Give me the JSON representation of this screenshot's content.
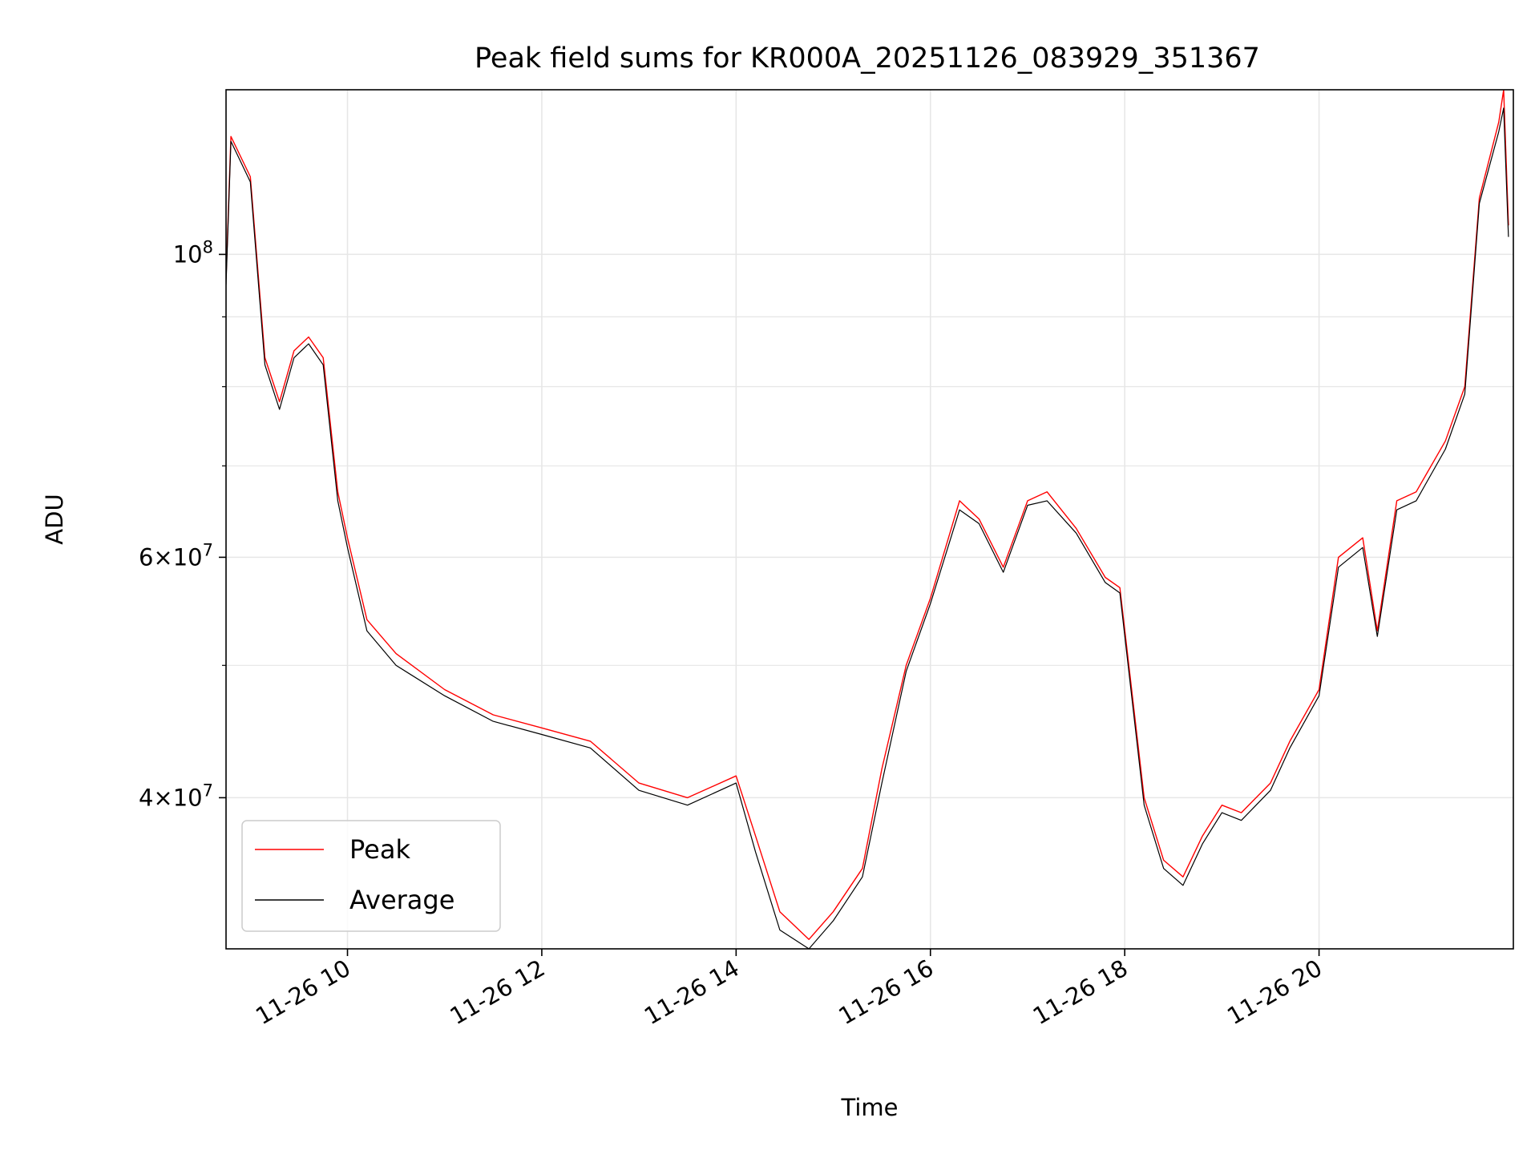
{
  "chart_data": {
    "type": "line",
    "title": "Peak field sums for KR000A_20251126_083929_351367",
    "xlabel": "Time",
    "ylabel": "ADU",
    "x_unit": "hours",
    "y_scale": "log",
    "xlim": [
      8.75,
      22.0
    ],
    "ylim": [
      31000000,
      132000000
    ],
    "grid": true,
    "legend": {
      "position": "lower-left",
      "entries": [
        "Peak",
        "Average"
      ]
    },
    "x_ticks": [
      {
        "value": 10,
        "label": "11-26 10"
      },
      {
        "value": 12,
        "label": "11-26 12"
      },
      {
        "value": 14,
        "label": "11-26 14"
      },
      {
        "value": 16,
        "label": "11-26 16"
      },
      {
        "value": 18,
        "label": "11-26 18"
      },
      {
        "value": 20,
        "label": "11-26 20"
      }
    ],
    "y_major_ticks": [
      {
        "value": 100000000,
        "base": "10",
        "exp": "8",
        "mantissa": ""
      },
      {
        "value": 60000000,
        "base": "10",
        "exp": "7",
        "mantissa": "6"
      },
      {
        "value": 40000000,
        "base": "10",
        "exp": "7",
        "mantissa": "4"
      }
    ],
    "y_minor_ticks": [
      50000000,
      70000000,
      80000000,
      90000000
    ],
    "series": [
      {
        "name": "Peak",
        "color": "#ff0000",
        "x": [
          8.75,
          8.8,
          9.0,
          9.15,
          9.3,
          9.45,
          9.6,
          9.75,
          9.9,
          10.0,
          10.2,
          10.5,
          11.0,
          11.5,
          12.0,
          12.5,
          13.0,
          13.5,
          14.0,
          14.2,
          14.45,
          14.75,
          15.0,
          15.3,
          15.5,
          15.75,
          16.0,
          16.3,
          16.5,
          16.75,
          17.0,
          17.2,
          17.5,
          17.8,
          17.95,
          18.2,
          18.4,
          18.6,
          18.8,
          19.0,
          19.2,
          19.5,
          19.7,
          20.0,
          20.2,
          20.45,
          20.6,
          20.8,
          21.0,
          21.3,
          21.5,
          21.65,
          21.85,
          21.9,
          21.95
        ],
        "y": [
          96000000,
          122000000,
          114000000,
          84000000,
          78000000,
          85000000,
          87000000,
          84000000,
          67000000,
          62000000,
          54000000,
          51000000,
          48000000,
          46000000,
          45000000,
          44000000,
          41000000,
          40000000,
          41500000,
          37500000,
          33000000,
          31500000,
          33000000,
          35500000,
          42000000,
          50000000,
          56000000,
          66000000,
          64000000,
          59000000,
          66000000,
          67000000,
          63000000,
          58000000,
          57000000,
          40000000,
          36000000,
          35000000,
          37500000,
          39500000,
          39000000,
          41000000,
          44000000,
          48000000,
          60000000,
          62000000,
          53000000,
          66000000,
          67000000,
          73000000,
          80000000,
          110000000,
          125000000,
          132000000,
          105000000
        ]
      },
      {
        "name": "Average",
        "color": "#000000",
        "x": [
          8.75,
          8.8,
          9.0,
          9.15,
          9.3,
          9.45,
          9.6,
          9.75,
          9.9,
          10.0,
          10.2,
          10.5,
          11.0,
          11.5,
          12.0,
          12.5,
          13.0,
          13.5,
          14.0,
          14.2,
          14.45,
          14.75,
          15.0,
          15.3,
          15.5,
          15.75,
          16.0,
          16.3,
          16.5,
          16.75,
          17.0,
          17.2,
          17.5,
          17.8,
          17.95,
          18.2,
          18.4,
          18.6,
          18.8,
          19.0,
          19.2,
          19.5,
          19.7,
          20.0,
          20.2,
          20.45,
          20.6,
          20.8,
          21.0,
          21.3,
          21.5,
          21.65,
          21.85,
          21.9,
          21.95
        ],
        "y": [
          95000000,
          121000000,
          113000000,
          83000000,
          77000000,
          84000000,
          86000000,
          83000000,
          66000000,
          61000000,
          53000000,
          50000000,
          47500000,
          45500000,
          44500000,
          43500000,
          40500000,
          39500000,
          41000000,
          36500000,
          32000000,
          31000000,
          32500000,
          35000000,
          41000000,
          49500000,
          55500000,
          65000000,
          63500000,
          58500000,
          65500000,
          66000000,
          62500000,
          57500000,
          56500000,
          39500000,
          35500000,
          34500000,
          37000000,
          39000000,
          38500000,
          40500000,
          43500000,
          47500000,
          59000000,
          61000000,
          52500000,
          65000000,
          66000000,
          72000000,
          79000000,
          109000000,
          123000000,
          128000000,
          103000000
        ]
      }
    ]
  }
}
